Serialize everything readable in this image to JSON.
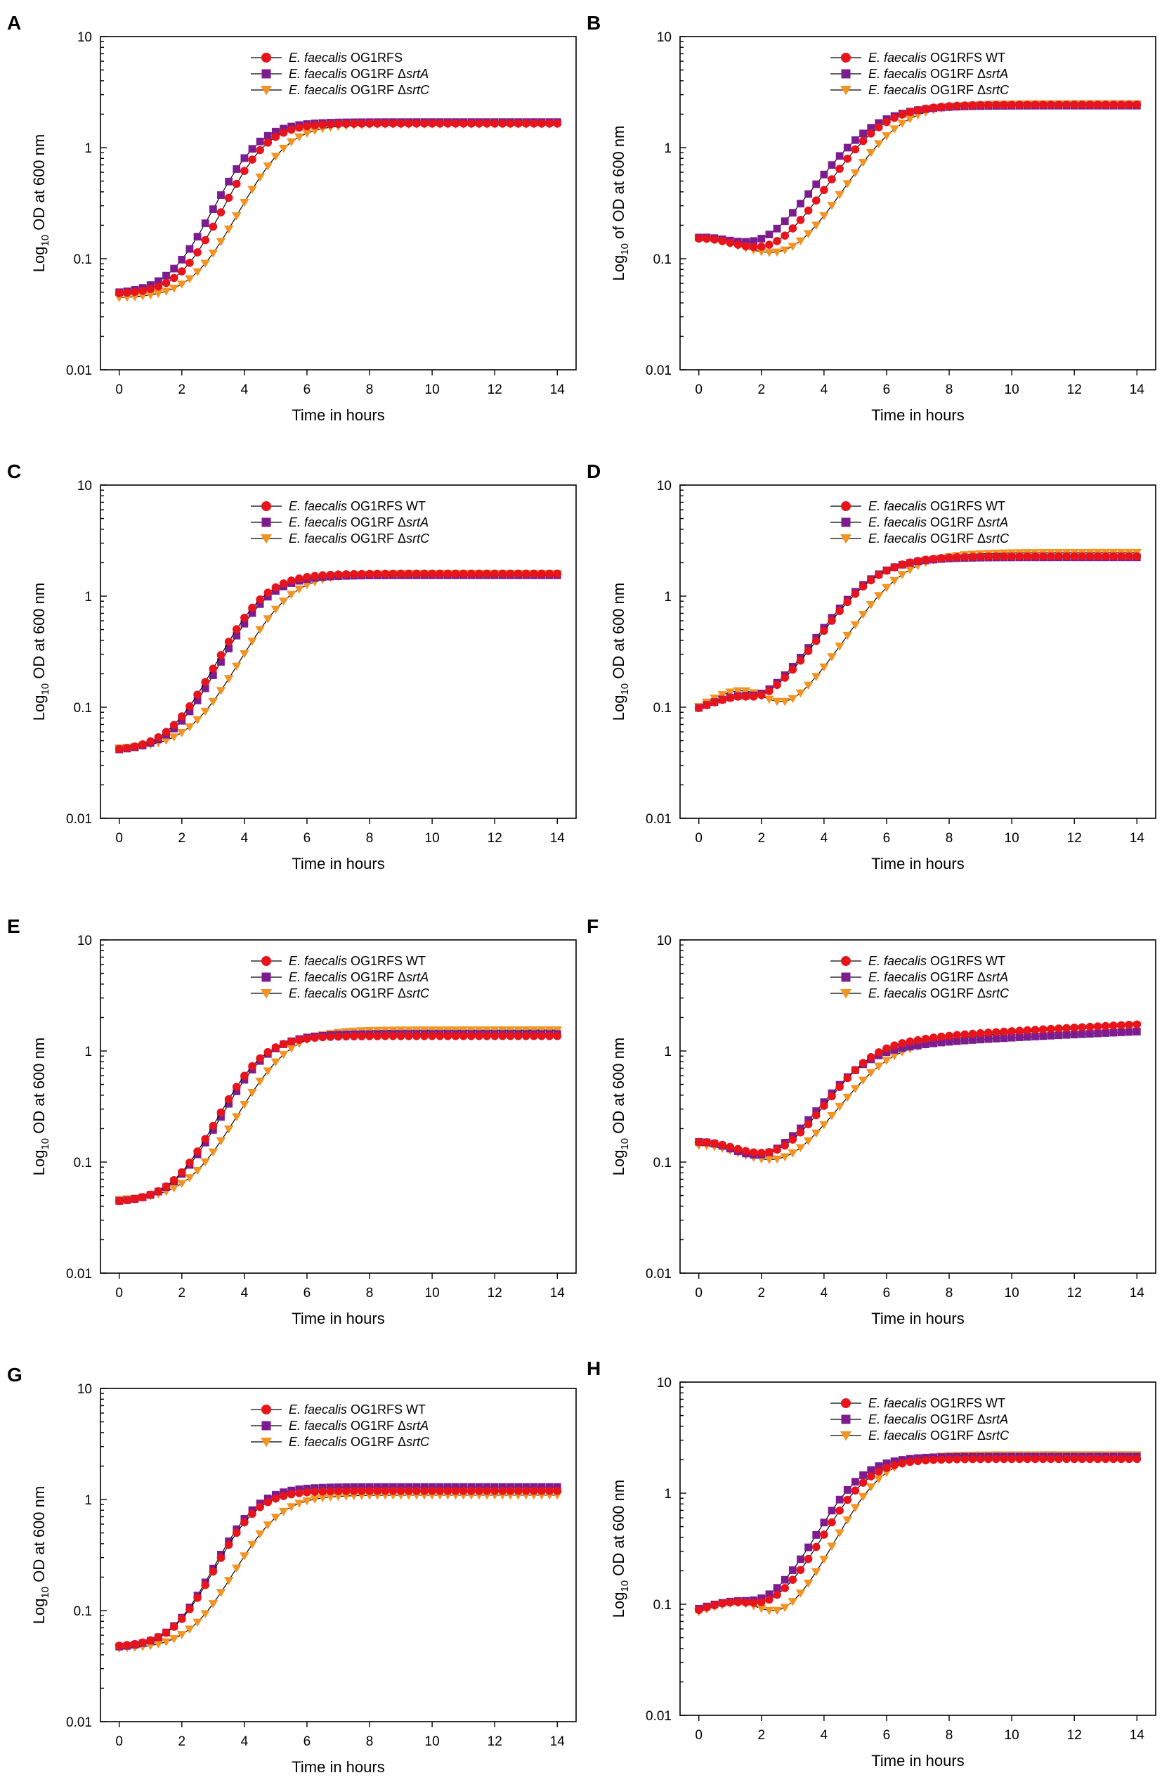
{
  "figure": {
    "xlabel": "Time in hours",
    "x_ticks": [
      "0",
      "2",
      "4",
      "6",
      "8",
      "10",
      "12",
      "14"
    ],
    "y_ticks": [
      "0.01",
      "0.1",
      "1",
      "10"
    ],
    "series_colors": {
      "wt": "#e8141c",
      "srtA": "#7d1c8f",
      "srtC": "#f39422"
    }
  },
  "chart_data": [
    {
      "panel": "A",
      "type": "line",
      "ylabel_main": "Log",
      "ylabel_sub": "10",
      "ylabel_rest": " OD at 600 nm",
      "xlim": [
        -0.6,
        14.6
      ],
      "ylim": [
        0.01,
        10
      ],
      "yscale": "log",
      "x": {
        "start": 0,
        "end": 14,
        "step": 0.25
      },
      "series": [
        {
          "key": "wt",
          "species": "E. faecalis",
          "strain": " OG1RFS",
          "mutation": "",
          "marker": "circle",
          "params": {
            "y0": 0.048,
            "ymax": 1.6,
            "k": 1.7,
            "t0": 4.35
          }
        },
        {
          "key": "srtA",
          "species": "E. faecalis",
          "strain": " OG1RF Δ",
          "mutation": "srtA",
          "marker": "square",
          "params": {
            "y0": 0.048,
            "ymax": 1.65,
            "k": 1.65,
            "t0": 4.1
          }
        },
        {
          "key": "srtC",
          "species": "E. faecalis",
          "strain": " OG1RF Δ",
          "mutation": "srtC",
          "marker": "triangle",
          "params": {
            "y0": 0.044,
            "ymax": 1.58,
            "k": 1.55,
            "t0": 5.0
          }
        }
      ]
    },
    {
      "panel": "B",
      "type": "line",
      "ylabel_main": "Log",
      "ylabel_sub": "10",
      "ylabel_rest": " of OD at 600 nm",
      "xlim": [
        -0.6,
        14.6
      ],
      "ylim": [
        0.01,
        10
      ],
      "yscale": "log",
      "x": {
        "start": 0,
        "end": 14,
        "step": 0.25
      },
      "series": [
        {
          "key": "wt",
          "species": "E. faecalis",
          "strain": " OG1RFS WT",
          "mutation": "",
          "marker": "circle",
          "params": {
            "y0": 0.15,
            "dipT": 3.0,
            "dipY": 0.088,
            "ymax": 2.35,
            "k": 1.3,
            "t0": 5.4
          }
        },
        {
          "key": "srtA",
          "species": "E. faecalis",
          "strain": " OG1RF Δ",
          "mutation": "srtA",
          "marker": "square",
          "params": {
            "y0": 0.15,
            "dipT": 2.8,
            "dipY": 0.088,
            "ymax": 2.3,
            "k": 1.2,
            "t0": 5.1
          }
        },
        {
          "key": "srtC",
          "species": "E. faecalis",
          "strain": " OG1RF Δ",
          "mutation": "srtC",
          "marker": "triangle",
          "params": {
            "y0": 0.15,
            "dipT": 3.6,
            "dipY": 0.078,
            "ymax": 2.4,
            "k": 1.3,
            "t0": 6.0
          }
        }
      ]
    },
    {
      "panel": "C",
      "type": "line",
      "ylabel_main": "Log",
      "ylabel_sub": "10",
      "ylabel_rest": " OD at 600 nm",
      "xlim": [
        -0.6,
        14.6
      ],
      "ylim": [
        0.01,
        10
      ],
      "yscale": "log",
      "x": {
        "start": 0,
        "end": 14,
        "step": 0.25
      },
      "series": [
        {
          "key": "wt",
          "species": "E. faecalis",
          "strain": " OG1RFS WT",
          "mutation": "",
          "marker": "circle",
          "params": {
            "y0": 0.04,
            "ymax": 1.55,
            "k": 1.55,
            "t0": 4.3
          }
        },
        {
          "key": "srtA",
          "species": "E. faecalis",
          "strain": " OG1RF Δ",
          "mutation": "srtA",
          "marker": "square",
          "params": {
            "y0": 0.04,
            "ymax": 1.5,
            "k": 1.55,
            "t0": 4.4
          }
        },
        {
          "key": "srtC",
          "species": "E. faecalis",
          "strain": " OG1RF Δ",
          "mutation": "srtC",
          "marker": "triangle",
          "params": {
            "y0": 0.042,
            "ymax": 1.55,
            "k": 1.45,
            "t0": 5.1
          }
        }
      ]
    },
    {
      "panel": "D",
      "type": "line",
      "ylabel_main": "Log",
      "ylabel_sub": "10",
      "ylabel_rest": " OD at 600 nm",
      "xlim": [
        -0.6,
        14.6
      ],
      "ylim": [
        0.01,
        10
      ],
      "yscale": "log",
      "x": {
        "start": 0,
        "end": 14,
        "step": 0.25
      },
      "series": [
        {
          "key": "wt",
          "species": "E. faecalis",
          "strain": " OG1RFS WT",
          "mutation": "",
          "marker": "circle",
          "params": {
            "y0": 0.095,
            "hump": 0.11,
            "humpT": 1.1,
            "dipT": 2.3,
            "dipY": 0.086,
            "ymax": 2.2,
            "k": 1.25,
            "t0": 5.2
          }
        },
        {
          "key": "srtA",
          "species": "E. faecalis",
          "strain": " OG1RF Δ",
          "mutation": "srtA",
          "marker": "square",
          "params": {
            "y0": 0.095,
            "hump": 0.11,
            "humpT": 1.1,
            "dipT": 2.3,
            "dipY": 0.086,
            "ymax": 2.15,
            "k": 1.25,
            "t0": 5.1
          }
        },
        {
          "key": "srtC",
          "species": "E. faecalis",
          "strain": " OG1RF Δ",
          "mutation": "srtC",
          "marker": "triangle",
          "params": {
            "y0": 0.1,
            "hump": 0.135,
            "humpT": 1.3,
            "dipT": 3.3,
            "dipY": 0.068,
            "ymax": 2.4,
            "k": 1.25,
            "t0": 6.1
          }
        }
      ]
    },
    {
      "panel": "E",
      "type": "line",
      "ylabel_main": "Log",
      "ylabel_sub": "10",
      "ylabel_rest": " OD at 600 nm",
      "xlim": [
        -0.6,
        14.6
      ],
      "ylim": [
        0.01,
        10
      ],
      "yscale": "log",
      "x": {
        "start": 0,
        "end": 14,
        "step": 0.25
      },
      "series": [
        {
          "key": "wt",
          "species": "E. faecalis",
          "strain": " OG1RFS WT",
          "mutation": "",
          "marker": "circle",
          "params": {
            "y0": 0.043,
            "ymax": 1.32,
            "k": 1.6,
            "t0": 4.2
          }
        },
        {
          "key": "srtA",
          "species": "E. faecalis",
          "strain": " OG1RF Δ",
          "mutation": "srtA",
          "marker": "square",
          "params": {
            "y0": 0.043,
            "ymax": 1.38,
            "k": 1.55,
            "t0": 4.35
          }
        },
        {
          "key": "srtC",
          "species": "E. faecalis",
          "strain": " OG1RF Δ",
          "mutation": "srtC",
          "marker": "triangle",
          "params": {
            "y0": 0.045,
            "ymax": 1.5,
            "k": 1.45,
            "t0": 5.0
          }
        }
      ]
    },
    {
      "panel": "F",
      "type": "line",
      "ylabel_main": "Log",
      "ylabel_sub": "10",
      "ylabel_rest": " OD at 600 nm",
      "xlim": [
        -0.6,
        14.6
      ],
      "ylim": [
        0.01,
        10
      ],
      "yscale": "log",
      "x": {
        "start": 0,
        "end": 14,
        "step": 0.25
      },
      "series": [
        {
          "key": "wt",
          "species": "E. faecalis",
          "strain": " OG1RFS WT",
          "mutation": "",
          "marker": "circle",
          "params": {
            "y0": 0.15,
            "dipT": 3.0,
            "dipY": 0.09,
            "ymax": 1.25,
            "k": 1.35,
            "t0": 5.1,
            "drift": 0.045
          }
        },
        {
          "key": "srtA",
          "species": "E. faecalis",
          "strain": " OG1RF Δ",
          "mutation": "srtA",
          "marker": "square",
          "params": {
            "y0": 0.15,
            "dipT": 2.6,
            "dipY": 0.086,
            "ymax": 1.1,
            "k": 1.3,
            "t0": 4.9,
            "drift": 0.04
          }
        },
        {
          "key": "srtC",
          "species": "E. faecalis",
          "strain": " OG1RF Δ",
          "mutation": "srtC",
          "marker": "triangle",
          "params": {
            "y0": 0.14,
            "dipT": 3.4,
            "dipY": 0.074,
            "ymax": 1.2,
            "k": 1.25,
            "t0": 5.6,
            "drift": 0.05
          }
        }
      ]
    },
    {
      "panel": "G",
      "type": "line",
      "ylabel_main": "Log",
      "ylabel_sub": "10",
      "ylabel_rest": " OD at 600 nm",
      "xlim": [
        -0.6,
        14.6
      ],
      "ylim": [
        0.01,
        10
      ],
      "yscale": "log",
      "x": {
        "start": 0,
        "end": 14,
        "step": 0.25
      },
      "series": [
        {
          "key": "wt",
          "species": "E. faecalis",
          "strain": " OG1RFS WT",
          "mutation": "",
          "marker": "circle",
          "params": {
            "y0": 0.047,
            "ymax": 1.15,
            "k": 1.7,
            "t0": 4.0
          }
        },
        {
          "key": "srtA",
          "species": "E. faecalis",
          "strain": " OG1RF Δ",
          "mutation": "srtA",
          "marker": "square",
          "params": {
            "y0": 0.046,
            "ymax": 1.25,
            "k": 1.7,
            "t0": 4.0
          }
        },
        {
          "key": "srtC",
          "species": "E. faecalis",
          "strain": " OG1RF Δ",
          "mutation": "srtC",
          "marker": "triangle",
          "params": {
            "y0": 0.045,
            "ymax": 1.05,
            "k": 1.55,
            "t0": 4.7
          }
        }
      ]
    },
    {
      "panel": "H",
      "type": "line",
      "ylabel_main": "Log",
      "ylabel_sub": "10",
      "ylabel_rest": " OD at 600 nm",
      "xlim": [
        -0.6,
        14.6
      ],
      "ylim": [
        0.01,
        10
      ],
      "yscale": "log",
      "x": {
        "start": 0,
        "end": 14,
        "step": 0.25
      },
      "series": [
        {
          "key": "wt",
          "species": "E. faecalis",
          "strain": " OG1RFS WT",
          "mutation": "",
          "marker": "circle",
          "params": {
            "y0": 0.088,
            "hump": 0.1,
            "humpT": 1.0,
            "dipT": 2.5,
            "dipY": 0.082,
            "ymax": 1.95,
            "k": 1.55,
            "t0": 5.0
          }
        },
        {
          "key": "srtA",
          "species": "E. faecalis",
          "strain": " OG1RF Δ",
          "mutation": "srtA",
          "marker": "square",
          "params": {
            "y0": 0.09,
            "hump": 0.1,
            "humpT": 1.0,
            "dipT": 2.4,
            "dipY": 0.084,
            "ymax": 2.05,
            "k": 1.55,
            "t0": 4.8
          }
        },
        {
          "key": "srtC",
          "species": "E. faecalis",
          "strain": " OG1RF Δ",
          "mutation": "srtC",
          "marker": "triangle",
          "params": {
            "y0": 0.085,
            "hump": 0.1,
            "humpT": 1.2,
            "dipT": 3.0,
            "dipY": 0.062,
            "ymax": 2.15,
            "k": 1.55,
            "t0": 5.5
          }
        }
      ]
    }
  ]
}
